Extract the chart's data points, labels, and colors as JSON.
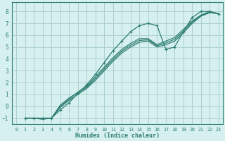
{
  "xlabel": "Humidex (Indice chaleur)",
  "bg_color": "#d6f0ef",
  "line_color": "#2e7d72",
  "grid_color": "#aacfcc",
  "xlim": [
    -0.5,
    23.5
  ],
  "ylim": [
    -1.5,
    8.8
  ],
  "xticks": [
    0,
    1,
    2,
    3,
    4,
    5,
    6,
    7,
    8,
    9,
    10,
    11,
    12,
    13,
    14,
    15,
    16,
    17,
    18,
    19,
    20,
    21,
    22,
    23
  ],
  "yticks": [
    -1,
    0,
    1,
    2,
    3,
    4,
    5,
    6,
    7,
    8
  ],
  "line_marker_x": [
    1,
    2,
    3,
    4,
    5,
    6,
    7,
    8,
    9,
    10,
    11,
    12,
    13,
    14,
    15,
    16,
    17,
    18,
    19,
    20,
    21,
    22,
    23
  ],
  "line_marker_y": [
    -1,
    -1,
    -1,
    -1,
    -0.3,
    0.3,
    1.1,
    1.8,
    2.7,
    3.7,
    4.7,
    5.5,
    6.3,
    6.8,
    7.0,
    6.8,
    4.8,
    5.0,
    6.3,
    7.5,
    8.0,
    8.0,
    7.8
  ],
  "line2_x": [
    1,
    2,
    3,
    4,
    5,
    6,
    7,
    8,
    9,
    10,
    11,
    12,
    13,
    14,
    15,
    16,
    17,
    18,
    19,
    20,
    21,
    22,
    23
  ],
  "line2_y": [
    -1,
    -1,
    -1,
    -1,
    -0.1,
    0.5,
    1.0,
    1.5,
    2.2,
    3.0,
    3.8,
    4.5,
    5.0,
    5.4,
    5.5,
    5.0,
    5.2,
    5.5,
    6.2,
    7.0,
    7.6,
    7.9,
    7.8
  ],
  "line3_x": [
    1,
    2,
    3,
    4,
    5,
    6,
    7,
    8,
    9,
    10,
    11,
    12,
    13,
    14,
    15,
    16,
    17,
    18,
    19,
    20,
    21,
    22,
    23
  ],
  "line3_y": [
    -1,
    -1,
    -1,
    -1,
    0.0,
    0.6,
    1.2,
    1.7,
    2.5,
    3.3,
    4.1,
    4.8,
    5.3,
    5.7,
    5.7,
    5.2,
    5.5,
    5.8,
    6.5,
    7.2,
    7.7,
    8.0,
    7.8
  ],
  "line4_x": [
    1,
    2,
    3,
    4,
    5,
    6,
    7,
    8,
    9,
    10,
    11,
    12,
    13,
    14,
    15,
    16,
    17,
    18,
    19,
    20,
    21,
    22,
    23
  ],
  "line4_y": [
    -1,
    -1,
    -1.1,
    -1,
    0.1,
    0.7,
    1.15,
    1.6,
    2.35,
    3.15,
    3.95,
    4.65,
    5.15,
    5.55,
    5.6,
    5.1,
    5.35,
    5.65,
    6.35,
    7.1,
    7.65,
    7.95,
    7.8
  ]
}
